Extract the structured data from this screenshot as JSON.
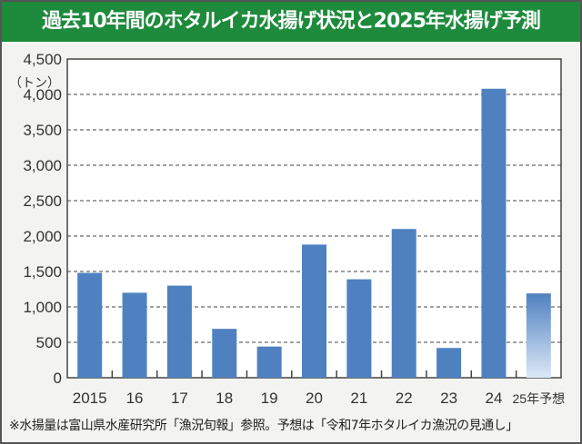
{
  "title": "過去10年間のホタルイカ水揚げ状況と2025年水揚げ予測",
  "footnote": "※水揚量は富山県水産研究所「漁況旬報」参照。予想は「令和7年ホタルイカ漁況の見通し」",
  "colors": {
    "title_bg": "#1e8a3c",
    "bar": "#4f81c1",
    "forecast_bar_bottom": "#dce8f7"
  },
  "chart_data": {
    "type": "bar",
    "title": "過去10年間のホタルイカ水揚げ状況と2025年水揚げ予測",
    "ylabel": "（トン）",
    "xlabel": "",
    "categories": [
      "2015",
      "16",
      "17",
      "18",
      "19",
      "20",
      "21",
      "22",
      "23",
      "24",
      "25年予想"
    ],
    "values": [
      1480,
      1200,
      1300,
      690,
      440,
      1880,
      1390,
      2100,
      420,
      4080,
      1190
    ],
    "forecast_index": 10,
    "ylim": [
      0,
      4500
    ],
    "yticks": [
      0,
      500,
      1000,
      1500,
      2000,
      2500,
      3000,
      3500,
      4000,
      4500
    ],
    "ytick_labels": [
      "0",
      "500",
      "1,000",
      "1,500",
      "2,000",
      "2,500",
      "3,000",
      "3,500",
      "4,000",
      "4,500"
    ],
    "grid": "horizontal dashed",
    "legend": "none"
  }
}
